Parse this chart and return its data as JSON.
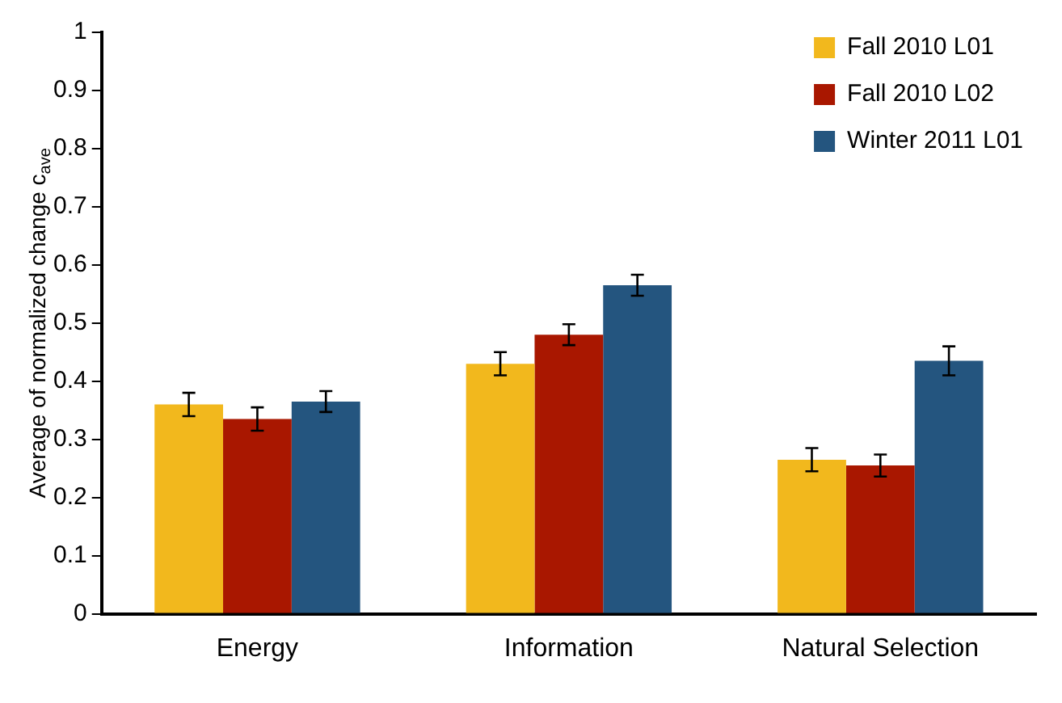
{
  "chart_data": {
    "type": "bar",
    "ylabel": "Average of normalized change c$_{ave}$",
    "categories": [
      "Energy",
      "Information",
      "Natural Selection"
    ],
    "series": [
      {
        "name": "Fall 2010 L01",
        "color": "#f2b81d",
        "values": [
          0.36,
          0.43,
          0.265
        ],
        "errors": [
          0.02,
          0.02,
          0.02
        ]
      },
      {
        "name": "Fall 2010 L02",
        "color": "#a91700",
        "values": [
          0.335,
          0.48,
          0.255
        ],
        "errors": [
          0.02,
          0.018,
          0.019
        ]
      },
      {
        "name": "Winter 2011 L01",
        "color": "#24557f",
        "values": [
          0.365,
          0.565,
          0.435
        ],
        "errors": [
          0.018,
          0.018,
          0.025
        ]
      }
    ],
    "ylim": [
      0,
      1
    ],
    "yticks": [
      0,
      0.1,
      0.2,
      0.3,
      0.4,
      0.5,
      0.6,
      0.7,
      0.8,
      0.9,
      1
    ],
    "grid": false,
    "legend": "top right"
  }
}
